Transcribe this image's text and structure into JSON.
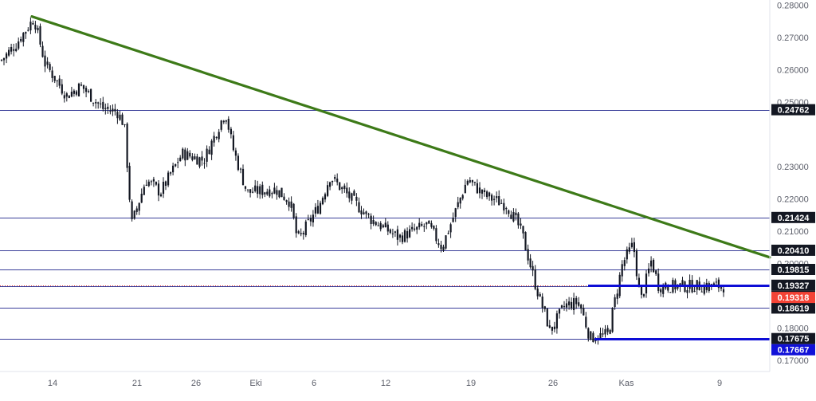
{
  "colors": {
    "background": "#ffffff",
    "candle": "#131722",
    "trendline": "#3d7a18",
    "level_line": "#3a3f9a",
    "support_line": "#0d0dd6",
    "current_price_line": "#e53935",
    "price_tag_dark": "#131722",
    "price_tag_blue": "#1010d8",
    "price_tag_red": "#f44336",
    "axis_text": "#5d606b",
    "axis_border": "#e0e3eb"
  },
  "chart_data": {
    "type": "candlestick",
    "title": "",
    "xlabel": "",
    "ylabel": "",
    "ylim": [
      0.168,
      0.2805
    ],
    "grid": false,
    "x_ticks": [
      "14",
      "21",
      "26",
      "Eki",
      "6",
      "12",
      "19",
      "26",
      "Kas",
      "9"
    ],
    "y_ticks": [
      "0.28000",
      "0.27000",
      "0.26000",
      "0.25000",
      "0.23000",
      "0.22000",
      "0.21000",
      "0.20000",
      "0.18000",
      "0.17000"
    ],
    "horizontal_levels": [
      {
        "value": 0.24762,
        "label": "0.24762",
        "style": "level"
      },
      {
        "value": 0.21424,
        "label": "0.21424",
        "style": "level"
      },
      {
        "value": 0.2041,
        "label": "0.20410",
        "style": "level"
      },
      {
        "value": 0.19815,
        "label": "0.19815",
        "style": "level"
      },
      {
        "value": 0.193,
        "label": "0.19300",
        "style": "level"
      },
      {
        "value": 0.18619,
        "label": "0.18619",
        "style": "level"
      },
      {
        "value": 0.17675,
        "label": "0.17675",
        "style": "level"
      }
    ],
    "support_lines": [
      {
        "value": 0.19327,
        "label": "0.19327",
        "x_start": "Kas"
      },
      {
        "value": 0.17667,
        "label": "0.17667",
        "x_start": "Kas"
      }
    ],
    "current_price": {
      "value": 0.19318,
      "label": "0.19318"
    },
    "trendline": {
      "from": {
        "x": "12 Eyl",
        "y": 0.2765
      },
      "to": {
        "x": "11 Kas",
        "y": 0.2019
      }
    },
    "candle_path": [
      {
        "t": 0,
        "v": 0.263
      },
      {
        "t": 0.02,
        "v": 0.268
      },
      {
        "t": 0.045,
        "v": 0.276
      },
      {
        "t": 0.06,
        "v": 0.262
      },
      {
        "t": 0.09,
        "v": 0.252
      },
      {
        "t": 0.11,
        "v": 0.255
      },
      {
        "t": 0.14,
        "v": 0.248
      },
      {
        "t": 0.16,
        "v": 0.247
      },
      {
        "t": 0.17,
        "v": 0.243
      },
      {
        "t": 0.18,
        "v": 0.212
      },
      {
        "t": 0.2,
        "v": 0.226
      },
      {
        "t": 0.22,
        "v": 0.222
      },
      {
        "t": 0.25,
        "v": 0.234
      },
      {
        "t": 0.28,
        "v": 0.232
      },
      {
        "t": 0.31,
        "v": 0.247
      },
      {
        "t": 0.32,
        "v": 0.236
      },
      {
        "t": 0.34,
        "v": 0.222
      },
      {
        "t": 0.38,
        "v": 0.223
      },
      {
        "t": 0.4,
        "v": 0.219
      },
      {
        "t": 0.41,
        "v": 0.207
      },
      {
        "t": 0.44,
        "v": 0.218
      },
      {
        "t": 0.455,
        "v": 0.227
      },
      {
        "t": 0.48,
        "v": 0.221
      },
      {
        "t": 0.51,
        "v": 0.214
      },
      {
        "t": 0.55,
        "v": 0.208
      },
      {
        "t": 0.59,
        "v": 0.212
      },
      {
        "t": 0.61,
        "v": 0.205
      },
      {
        "t": 0.645,
        "v": 0.226
      },
      {
        "t": 0.67,
        "v": 0.221
      },
      {
        "t": 0.7,
        "v": 0.218
      },
      {
        "t": 0.72,
        "v": 0.21
      },
      {
        "t": 0.74,
        "v": 0.193
      },
      {
        "t": 0.76,
        "v": 0.179
      },
      {
        "t": 0.78,
        "v": 0.187
      },
      {
        "t": 0.8,
        "v": 0.188
      },
      {
        "t": 0.815,
        "v": 0.177
      },
      {
        "t": 0.84,
        "v": 0.178
      },
      {
        "t": 0.86,
        "v": 0.2
      },
      {
        "t": 0.875,
        "v": 0.206
      },
      {
        "t": 0.885,
        "v": 0.188
      },
      {
        "t": 0.9,
        "v": 0.201
      },
      {
        "t": 0.91,
        "v": 0.193
      }
    ]
  }
}
